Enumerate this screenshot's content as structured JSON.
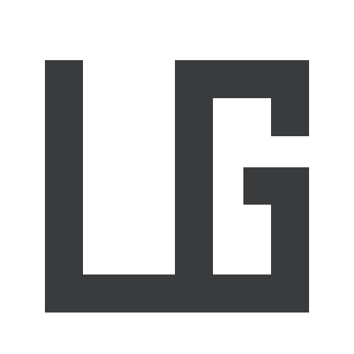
{
  "logo": {
    "name": "lg-monogram",
    "text": "LG",
    "colors": {
      "background": "#ffffff",
      "glyph": "#3a3b3c"
    }
  }
}
